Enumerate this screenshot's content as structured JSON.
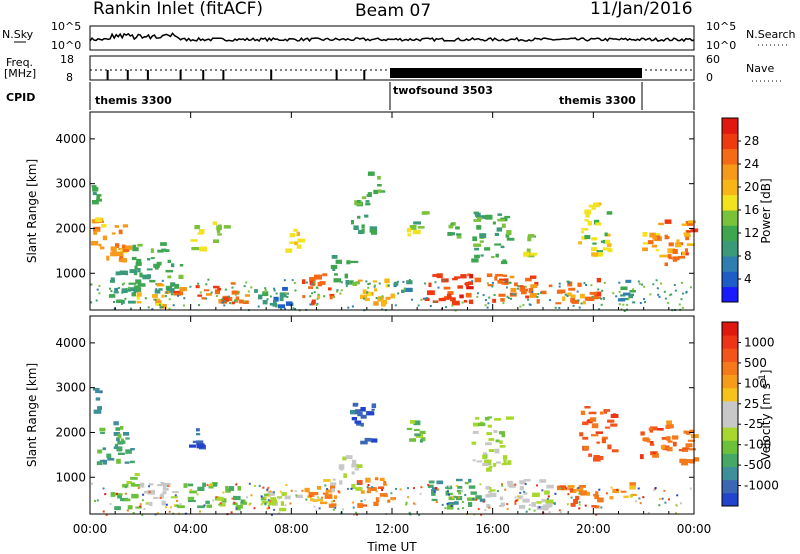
{
  "header": {
    "title": "Rankin Inlet (fitACF)",
    "beam": "Beam 07",
    "date": "11/Jan/2016"
  },
  "noise_panel": {
    "left_label": "N.Sky",
    "right_label": "N.Search",
    "left_ticks": [
      "10^5",
      "10^0"
    ],
    "right_ticks": [
      "10^5",
      "10^0"
    ]
  },
  "freq_panel": {
    "left_label_1": "Freq.",
    "left_label_2": "[MHz]",
    "right_label": "Nave",
    "left_ticks": [
      "18",
      "8"
    ],
    "right_ticks": [
      "60",
      "0"
    ]
  },
  "cpid_panel": {
    "label": "CPID",
    "segments": [
      {
        "name": "themis 3300",
        "start_h": 0.0,
        "end_h": 12.0
      },
      {
        "name": "twofsound 3503",
        "start_h": 12.0,
        "end_h": 22.0
      },
      {
        "name": "themis 3300",
        "start_h": 22.0,
        "end_h": 24.0
      }
    ]
  },
  "x_axis": {
    "label": "Time UT",
    "range_h": [
      0,
      24
    ],
    "tick_labels": [
      "00:00",
      "04:00",
      "08:00",
      "12:00",
      "16:00",
      "20:00",
      "00:00"
    ]
  },
  "chart_data": [
    {
      "type": "heatmap",
      "name": "power-panel",
      "ylabel": "Slant Range [km]",
      "ylim": [
        180,
        4600
      ],
      "yticks": [
        1000,
        2000,
        3000,
        4000
      ],
      "colorbar": {
        "label": "Power [dB]",
        "range": [
          0,
          32
        ],
        "ticks": [
          "4",
          "8",
          "12",
          "16",
          "20",
          "24",
          "28"
        ],
        "colors": [
          "#1a1aff",
          "#1e5cc8",
          "#2e7fb0",
          "#3b9a7a",
          "#3ea64f",
          "#7bc23b",
          "#f3e21e",
          "#f7b518",
          "#f79a1a",
          "#f56a14",
          "#ef3a10",
          "#e01810"
        ]
      },
      "blobs": [
        {
          "t0": 0.0,
          "t1": 1.6,
          "r0": 1300,
          "r1": 2300,
          "v": 22
        },
        {
          "t0": 0.0,
          "t1": 0.4,
          "r0": 2400,
          "r1": 3000,
          "v": 12
        },
        {
          "t0": 0.7,
          "t1": 1.8,
          "r0": 300,
          "r1": 1100,
          "v": 10
        },
        {
          "t0": 1.5,
          "t1": 3.6,
          "r0": 600,
          "r1": 1700,
          "v": 12
        },
        {
          "t0": 1.8,
          "t1": 3.2,
          "r0": 300,
          "r1": 800,
          "v": 20
        },
        {
          "t0": 3.0,
          "t1": 6.2,
          "r0": 350,
          "r1": 800,
          "v": 26
        },
        {
          "t0": 3.9,
          "t1": 4.4,
          "r0": 1500,
          "r1": 2100,
          "v": 18
        },
        {
          "t0": 4.8,
          "t1": 5.4,
          "r0": 1700,
          "r1": 2300,
          "v": 14
        },
        {
          "t0": 6.5,
          "t1": 8.2,
          "r0": 300,
          "r1": 700,
          "v": 8
        },
        {
          "t0": 7.7,
          "t1": 8.3,
          "r0": 1500,
          "r1": 2000,
          "v": 16
        },
        {
          "t0": 8.4,
          "t1": 9.8,
          "r0": 350,
          "r1": 1000,
          "v": 24
        },
        {
          "t0": 9.5,
          "t1": 10.6,
          "r0": 700,
          "r1": 1500,
          "v": 12
        },
        {
          "t0": 10.3,
          "t1": 11.2,
          "r0": 1800,
          "r1": 2800,
          "v": 12
        },
        {
          "t0": 10.5,
          "t1": 12.0,
          "r0": 350,
          "r1": 1000,
          "v": 20
        },
        {
          "t0": 11.0,
          "t1": 11.5,
          "r0": 2800,
          "r1": 3400,
          "v": 12
        },
        {
          "t0": 12.0,
          "t1": 12.8,
          "r0": 600,
          "r1": 1100,
          "v": 10
        },
        {
          "t0": 12.5,
          "t1": 13.3,
          "r0": 1800,
          "r1": 2400,
          "v": 14
        },
        {
          "t0": 13.2,
          "t1": 15.5,
          "r0": 350,
          "r1": 1000,
          "v": 28
        },
        {
          "t0": 14.1,
          "t1": 14.6,
          "r0": 1800,
          "r1": 2200,
          "v": 12
        },
        {
          "t0": 15.0,
          "t1": 16.6,
          "r0": 1200,
          "r1": 2400,
          "v": 12
        },
        {
          "t0": 15.5,
          "t1": 18.3,
          "r0": 350,
          "r1": 1000,
          "v": 26
        },
        {
          "t0": 17.2,
          "t1": 17.6,
          "r0": 1400,
          "r1": 1900,
          "v": 14
        },
        {
          "t0": 18.3,
          "t1": 20.3,
          "r0": 350,
          "r1": 900,
          "v": 24
        },
        {
          "t0": 19.4,
          "t1": 20.8,
          "r0": 1400,
          "r1": 2600,
          "v": 16
        },
        {
          "t0": 20.6,
          "t1": 21.6,
          "r0": 350,
          "r1": 900,
          "v": 10
        },
        {
          "t0": 21.8,
          "t1": 22.6,
          "r0": 1300,
          "r1": 2200,
          "v": 22
        },
        {
          "t0": 22.6,
          "t1": 24.0,
          "r0": 1200,
          "r1": 2300,
          "v": 24
        }
      ]
    },
    {
      "type": "heatmap",
      "name": "velocity-panel",
      "ylabel": "Slant Range [km]",
      "ylim": [
        180,
        4600
      ],
      "yticks": [
        1000,
        2000,
        3000,
        4000
      ],
      "colorbar": {
        "label": "Velocity [m s^-1]",
        "ticks": [
          "1000",
          "500",
          "100",
          "25",
          "-25",
          "-100",
          "-500",
          "-1000"
        ],
        "colors": [
          "#2244cc",
          "#3b67b4",
          "#3f8f9a",
          "#45a867",
          "#6dc03a",
          "#a8d82e",
          "#c8c8c8",
          "#c8c8c8",
          "#f7c21a",
          "#f79c1a",
          "#f5781a",
          "#f2541a",
          "#ee3414",
          "#e01810"
        ]
      },
      "blobs": [
        {
          "t0": 0.0,
          "t1": 1.6,
          "r0": 1300,
          "r1": 2300,
          "v": 3
        },
        {
          "t0": 0.0,
          "t1": 0.4,
          "r0": 2400,
          "r1": 3000,
          "v": 2
        },
        {
          "t0": 0.7,
          "t1": 1.8,
          "r0": 300,
          "r1": 1100,
          "v": 4
        },
        {
          "t0": 1.8,
          "t1": 3.4,
          "r0": 350,
          "r1": 900,
          "v": 6
        },
        {
          "t0": 3.2,
          "t1": 6.2,
          "r0": 350,
          "r1": 900,
          "v": 4
        },
        {
          "t0": 3.9,
          "t1": 4.4,
          "r0": 1500,
          "r1": 2100,
          "v": 1
        },
        {
          "t0": 6.5,
          "t1": 8.2,
          "r0": 300,
          "r1": 700,
          "v": 5
        },
        {
          "t0": 8.4,
          "t1": 9.8,
          "r0": 350,
          "r1": 1000,
          "v": 9
        },
        {
          "t0": 9.5,
          "t1": 10.6,
          "r0": 700,
          "r1": 1500,
          "v": 6
        },
        {
          "t0": 10.3,
          "t1": 11.2,
          "r0": 1800,
          "r1": 2800,
          "v": 1
        },
        {
          "t0": 10.5,
          "t1": 12.0,
          "r0": 350,
          "r1": 1000,
          "v": 10
        },
        {
          "t0": 12.5,
          "t1": 13.3,
          "r0": 1800,
          "r1": 2400,
          "v": 4
        },
        {
          "t0": 13.2,
          "t1": 15.5,
          "r0": 350,
          "r1": 1000,
          "v": 3
        },
        {
          "t0": 15.0,
          "t1": 16.6,
          "r0": 1200,
          "r1": 2400,
          "v": 5
        },
        {
          "t0": 15.5,
          "t1": 18.3,
          "r0": 350,
          "r1": 1000,
          "v": 6
        },
        {
          "t0": 18.3,
          "t1": 20.3,
          "r0": 350,
          "r1": 900,
          "v": 10
        },
        {
          "t0": 19.4,
          "t1": 20.8,
          "r0": 1400,
          "r1": 2600,
          "v": 11
        },
        {
          "t0": 20.6,
          "t1": 21.6,
          "r0": 350,
          "r1": 900,
          "v": 9
        },
        {
          "t0": 21.8,
          "t1": 22.6,
          "r0": 1300,
          "r1": 2200,
          "v": 11
        },
        {
          "t0": 22.6,
          "t1": 24.0,
          "r0": 1200,
          "r1": 2300,
          "v": 10
        }
      ]
    }
  ]
}
